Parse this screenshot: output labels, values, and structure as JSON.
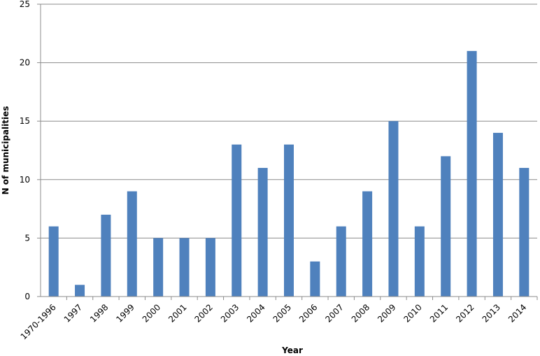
{
  "chart_data": {
    "type": "bar",
    "title": "",
    "xlabel": "Year",
    "ylabel": "N of municipalities",
    "categories": [
      "1970-1996",
      "1997",
      "1998",
      "1999",
      "2000",
      "2001",
      "2002",
      "2003",
      "2004",
      "2005",
      "2006",
      "2007",
      "2008",
      "2009",
      "2010",
      "2011",
      "2012",
      "2013",
      "2014"
    ],
    "values": [
      6,
      1,
      7,
      9,
      5,
      5,
      5,
      13,
      11,
      13,
      3,
      6,
      9,
      15,
      6,
      12,
      21,
      14,
      11
    ],
    "ylim": [
      0,
      25
    ],
    "yticks": [
      0,
      5,
      10,
      15,
      20,
      25
    ],
    "grid": true,
    "legend": "none",
    "bar_color": "#4f81bd",
    "grid_color": "#8c8c8c"
  }
}
